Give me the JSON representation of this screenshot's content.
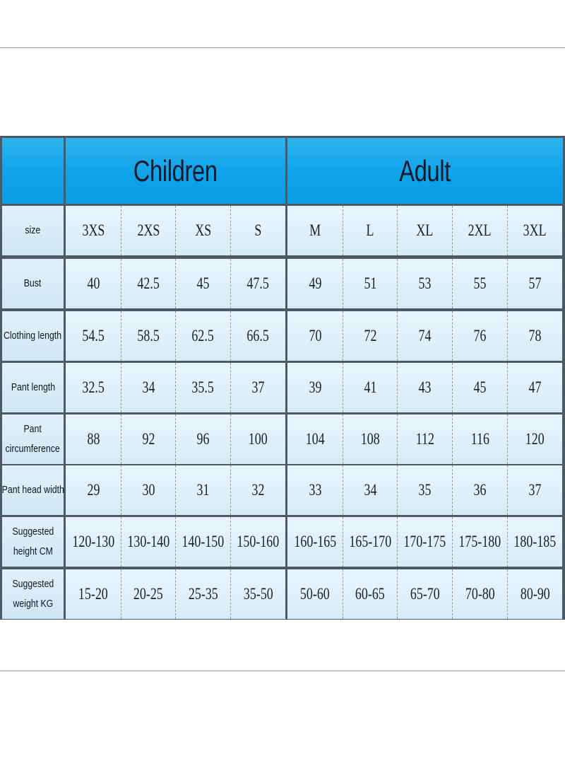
{
  "groups": {
    "children": "Children",
    "adult": "Adult"
  },
  "table": {
    "rows": [
      {
        "label": "size",
        "values": [
          "3XS",
          "2XS",
          "XS",
          "S",
          "M",
          "L",
          "XL",
          "2XL",
          "3XL"
        ]
      },
      {
        "label": "Bust",
        "values": [
          "40",
          "42.5",
          "45",
          "47.5",
          "49",
          "51",
          "53",
          "55",
          "57"
        ]
      },
      {
        "label": "Clothing length",
        "values": [
          "54.5",
          "58.5",
          "62.5",
          "66.5",
          "70",
          "72",
          "74",
          "76",
          "78"
        ]
      },
      {
        "label": "Pant length",
        "values": [
          "32.5",
          "34",
          "35.5",
          "37",
          "39",
          "41",
          "43",
          "45",
          "47"
        ]
      },
      {
        "label": "Pant circumference",
        "values": [
          "88",
          "92",
          "96",
          "100",
          "104",
          "108",
          "112",
          "116",
          "120"
        ]
      },
      {
        "label": "Pant head width",
        "values": [
          "29",
          "30",
          "31",
          "32",
          "33",
          "34",
          "35",
          "36",
          "37"
        ]
      },
      {
        "label": "Suggested height CM",
        "values": [
          "120-130",
          "130-140",
          "140-150",
          "150-160",
          "160-165",
          "165-170",
          "170-175",
          "175-180",
          "180-185"
        ]
      },
      {
        "label": "Suggested weight KG",
        "values": [
          "15-20",
          "20-25",
          "25-35",
          "35-50",
          "50-60",
          "60-65",
          "65-70",
          "70-80",
          "80-90"
        ]
      }
    ]
  },
  "colors": {
    "header_blue": "#0ea3ea",
    "grid_line": "#4d5a66",
    "cell_fill": "#e9f5fc"
  }
}
